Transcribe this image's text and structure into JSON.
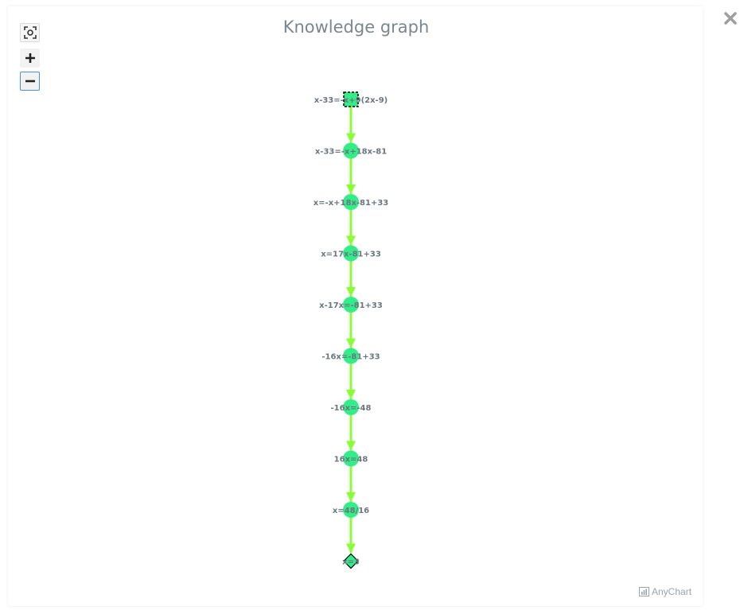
{
  "title": "Knowledge graph",
  "credits": "AnyChart",
  "controls": {
    "fit": "fit-to-view",
    "zoom_in": "+",
    "zoom_out": "−"
  },
  "colors": {
    "node": "#33ee88",
    "edge": "#88ff33",
    "label": "#6b7682"
  },
  "nodes": [
    {
      "id": "n0",
      "label": "x-33=-x+9(2x-9)",
      "shape": "square-selected"
    },
    {
      "id": "n1",
      "label": "x-33=-x+18x-81",
      "shape": "circle"
    },
    {
      "id": "n2",
      "label": "x=-x+18x-81+33",
      "shape": "circle"
    },
    {
      "id": "n3",
      "label": "x=17x-81+33",
      "shape": "circle"
    },
    {
      "id": "n4",
      "label": "x-17x=-81+33",
      "shape": "circle"
    },
    {
      "id": "n5",
      "label": "-16x=-81+33",
      "shape": "circle"
    },
    {
      "id": "n6",
      "label": "-16x=-48",
      "shape": "circle"
    },
    {
      "id": "n7",
      "label": "16x=48",
      "shape": "circle"
    },
    {
      "id": "n8",
      "label": "x=48/16",
      "shape": "circle"
    },
    {
      "id": "n9",
      "label": "x=3",
      "shape": "diamond"
    }
  ],
  "edges": [
    [
      "n0",
      "n1"
    ],
    [
      "n1",
      "n2"
    ],
    [
      "n2",
      "n3"
    ],
    [
      "n3",
      "n4"
    ],
    [
      "n4",
      "n5"
    ],
    [
      "n5",
      "n6"
    ],
    [
      "n6",
      "n7"
    ],
    [
      "n7",
      "n8"
    ],
    [
      "n8",
      "n9"
    ]
  ]
}
